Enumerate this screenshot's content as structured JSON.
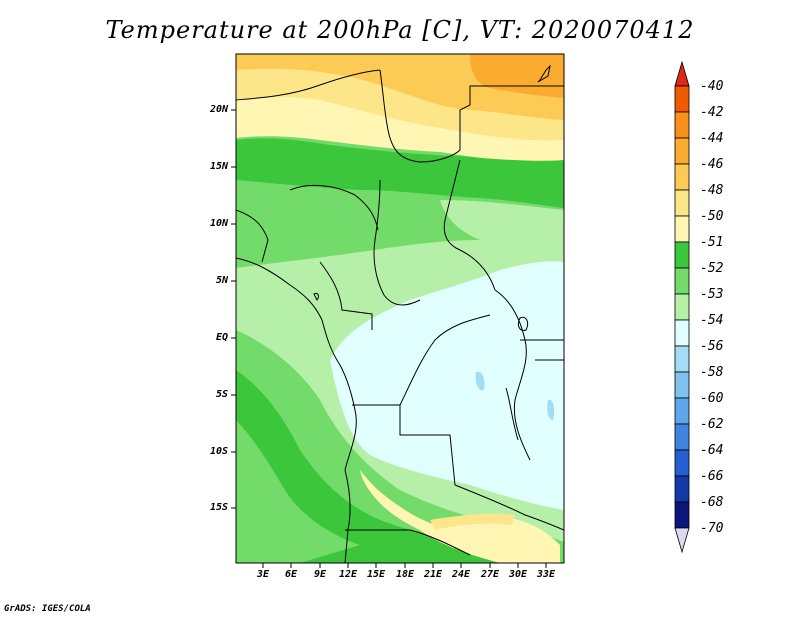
{
  "title": "Temperature at 200hPa [C], VT: 2020070412",
  "credit": "GrADS: IGES/COLA",
  "map": {
    "lat_labels": [
      "20N",
      "15N",
      "10N",
      "5N",
      "EQ",
      "5S",
      "10S",
      "15S"
    ],
    "lon_labels": [
      "3E",
      "6E",
      "9E",
      "12E",
      "15E",
      "18E",
      "21E",
      "24E",
      "27E",
      "30E",
      "33E"
    ]
  },
  "colorbar": {
    "levels": [
      "-40",
      "-42",
      "-44",
      "-46",
      "-48",
      "-50",
      "-51",
      "-52",
      "-53",
      "-54",
      "-56",
      "-58",
      "-60",
      "-62",
      "-64",
      "-66",
      "-68",
      "-70"
    ],
    "colors": [
      "#d92b0a",
      "#f05a00",
      "#f8901a",
      "#fbab2e",
      "#fccb55",
      "#fde68a",
      "#fff6b4",
      "#3cc63c",
      "#72db6a",
      "#b6f0a8",
      "#e0fffe",
      "#a4dcf5",
      "#7fc2f0",
      "#5ea7ec",
      "#3f85e0",
      "#2460d2",
      "#1438a8",
      "#0c167a"
    ],
    "top_color": "#e0281a",
    "bottom_color": "#dcd8f0"
  }
}
